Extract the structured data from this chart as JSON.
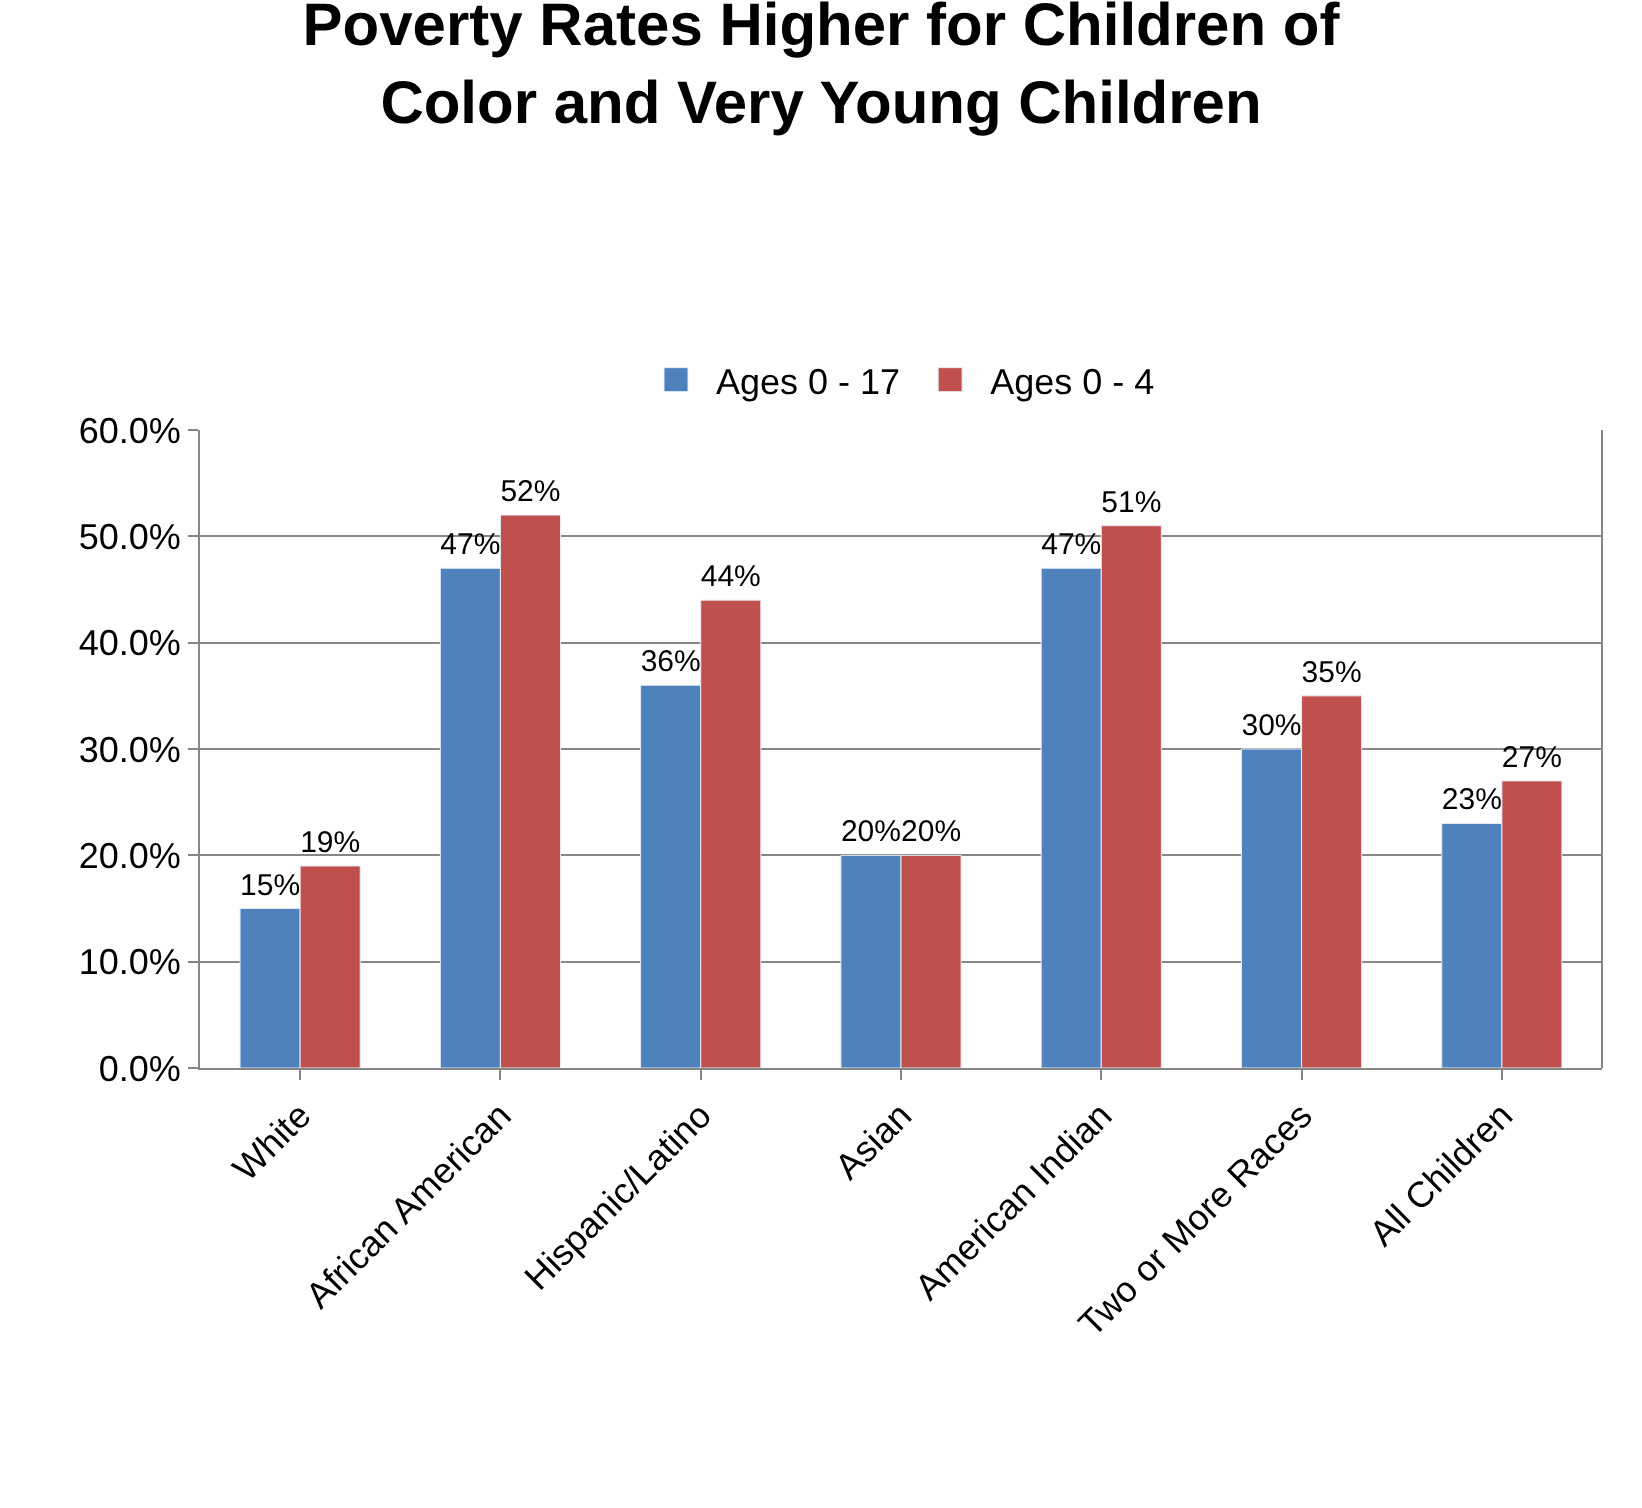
{
  "chart_data": {
    "type": "bar",
    "title": "Poverty Rates Higher for Children of Color and Very Young Children",
    "categories": [
      "White",
      "African American",
      "Hispanic/Latino",
      "Asian",
      "American Indian",
      "Two or More Races",
      "All Children"
    ],
    "series": [
      {
        "name": "Ages 0 - 17",
        "color": "#4f81bd",
        "values": [
          15,
          47,
          36,
          20,
          47,
          30,
          23
        ],
        "value_labels": [
          "15%",
          "47%",
          "36%",
          "20%",
          "47%",
          "30%",
          "23%"
        ]
      },
      {
        "name": "Ages 0 - 4",
        "color": "#c0504d",
        "values": [
          19,
          52,
          44,
          20,
          51,
          35,
          27
        ],
        "value_labels": [
          "19%",
          "52%",
          "44%",
          "20%",
          "51%",
          "35%",
          "27%"
        ]
      }
    ],
    "ylim": [
      0,
      60
    ],
    "yticks": [
      {
        "value": 0,
        "label": "0.0%"
      },
      {
        "value": 10,
        "label": "10.0%"
      },
      {
        "value": 20,
        "label": "20.0%"
      },
      {
        "value": 30,
        "label": "30.0%"
      },
      {
        "value": 40,
        "label": "40.0%"
      },
      {
        "value": 50,
        "label": "50.0%"
      },
      {
        "value": 60,
        "label": "60.0%"
      }
    ],
    "grid": "y",
    "legend": "top"
  }
}
